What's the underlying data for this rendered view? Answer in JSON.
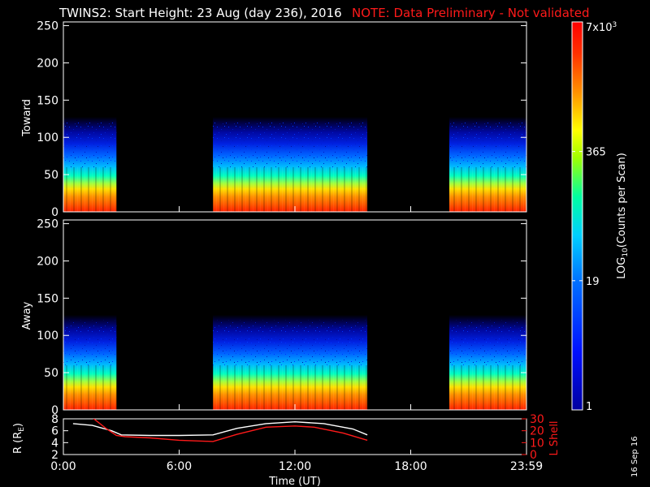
{
  "header": {
    "title": "TWINS2: Start Height: 23 Aug (day 236), 2016",
    "note": "NOTE: Data Preliminary - Not validated",
    "note_color": "#ff1a1a"
  },
  "stamp": "16 Sep 16",
  "chart_data": [
    {
      "type": "heatmap",
      "name": "Toward",
      "ylabel": "Toward",
      "ylim": [
        0,
        255
      ],
      "yticks": [
        0,
        50,
        100,
        150,
        200,
        250
      ],
      "xlim": [
        0,
        24
      ],
      "data_blocks_hours": [
        [
          0,
          2.75
        ],
        [
          7.75,
          15.75
        ],
        [
          20.0,
          24.0
        ]
      ],
      "description_colors": "counts concentrated below ~100, peak near 0"
    },
    {
      "type": "heatmap",
      "name": "Away",
      "ylabel": "Away",
      "ylim": [
        0,
        255
      ],
      "yticks": [
        0,
        50,
        100,
        150,
        200,
        250
      ],
      "xlim": [
        0,
        24
      ],
      "data_blocks_hours": [
        [
          0,
          2.75
        ],
        [
          7.75,
          15.75
        ],
        [
          20.0,
          24.0
        ]
      ]
    },
    {
      "type": "line",
      "xlabel": "Time (UT)",
      "xticks": [
        "0:00",
        "6:00",
        "12:00",
        "18:00",
        "23:59"
      ],
      "xlim": [
        0,
        24
      ],
      "ylabel_left": "R (R",
      "ylabel_left_sub": "E",
      "ylabel_left_end": ")",
      "ylim_left": [
        2,
        8
      ],
      "yticks_left": [
        2,
        4,
        6,
        8
      ],
      "ylabel_right": "L Shell",
      "ylim_right": [
        0,
        30
      ],
      "yticks_right": [
        0,
        10,
        20,
        30
      ],
      "series": [
        {
          "color": "#ffffff",
          "axis": "left",
          "x": [
            0.5,
            1.5,
            2.5,
            3.0,
            4.5,
            6.0,
            7.75,
            9.0,
            10.5,
            12.0,
            13.5,
            15.0,
            15.75
          ],
          "y": [
            7.2,
            6.9,
            6.0,
            5.3,
            5.2,
            5.2,
            5.3,
            6.4,
            7.2,
            7.5,
            7.2,
            6.3,
            5.3
          ]
        },
        {
          "color": "#ff1a1a",
          "axis": "right",
          "x": [
            1.5,
            2.2,
            2.75,
            3.2,
            4.5,
            6.0,
            7.75,
            9.0,
            10.5,
            12.0,
            13.0,
            14.5,
            15.75
          ],
          "y": [
            31,
            22,
            16,
            15,
            14,
            12,
            11,
            17,
            23,
            24,
            23,
            18,
            12
          ]
        }
      ]
    }
  ],
  "colorbar": {
    "ylabel": "LOG",
    "ylabel_sub": "10",
    "ylabel_end": "(Counts per Scan)",
    "ticks": [
      {
        "label": "1",
        "frac": 0.0
      },
      {
        "label": "19",
        "frac": 0.333
      },
      {
        "label": "365",
        "frac": 0.666
      },
      {
        "label": "7x10",
        "sup": "3",
        "frac": 1.0
      }
    ]
  }
}
